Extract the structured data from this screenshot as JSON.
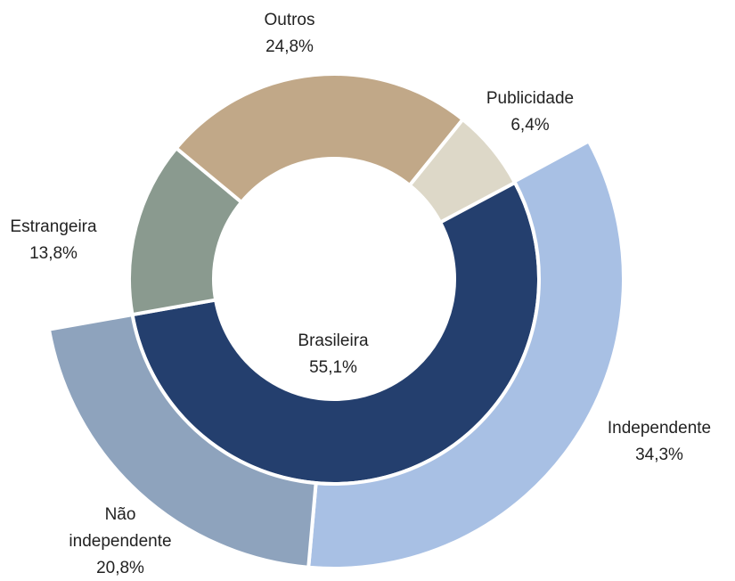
{
  "chart_data": {
    "type": "donut",
    "rings": [
      {
        "categories": [
          "Brasileira",
          "Estrangeira",
          "Outros",
          "Publicidade"
        ],
        "values": [
          55.1,
          13.8,
          24.8,
          6.4
        ],
        "value_labels": [
          "55,1%",
          "13,8%",
          "24,8%",
          "6,4%"
        ],
        "colors": [
          "#243f6e",
          "#8a9a8f",
          "#c1a888",
          "#ddd8c8"
        ]
      },
      {
        "categories": [
          "Independente",
          "Não independente"
        ],
        "values": [
          34.3,
          20.8
        ],
        "value_labels": [
          "34,3%",
          "20,8%"
        ],
        "colors": [
          "#a8c0e4",
          "#8ea3bd"
        ]
      }
    ]
  }
}
